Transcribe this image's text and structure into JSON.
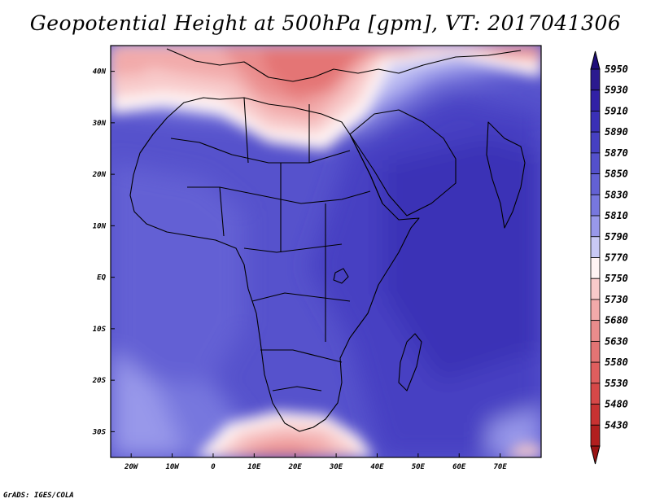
{
  "title": "Geopotential Height at 500hPa [gpm], VT: 2017041306",
  "footer": "GrADS: IGES/COLA",
  "map": {
    "lon_range": [
      -25,
      80
    ],
    "lat_range": [
      -35,
      45
    ],
    "lon_ticks": [
      {
        "value": -20,
        "label": "20W"
      },
      {
        "value": -10,
        "label": "10W"
      },
      {
        "value": 0,
        "label": "0"
      },
      {
        "value": 10,
        "label": "10E"
      },
      {
        "value": 20,
        "label": "20E"
      },
      {
        "value": 30,
        "label": "30E"
      },
      {
        "value": 40,
        "label": "40E"
      },
      {
        "value": 50,
        "label": "50E"
      },
      {
        "value": 60,
        "label": "60E"
      },
      {
        "value": 70,
        "label": "70E"
      }
    ],
    "lat_ticks": [
      {
        "value": 40,
        "label": "40N"
      },
      {
        "value": 30,
        "label": "30N"
      },
      {
        "value": 20,
        "label": "20N"
      },
      {
        "value": 10,
        "label": "10N"
      },
      {
        "value": 0,
        "label": "EQ"
      },
      {
        "value": -10,
        "label": "10S"
      },
      {
        "value": -20,
        "label": "20S"
      },
      {
        "value": -30,
        "label": "30S"
      }
    ]
  },
  "colorbar": {
    "levels": [
      {
        "value": "5950",
        "color": "#2b1a8f"
      },
      {
        "value": "5930",
        "color": "#3121a6"
      },
      {
        "value": "5910",
        "color": "#3a30b6"
      },
      {
        "value": "5890",
        "color": "#4640c2"
      },
      {
        "value": "5870",
        "color": "#5450cb"
      },
      {
        "value": "5850",
        "color": "#6361d4"
      },
      {
        "value": "5830",
        "color": "#7777de"
      },
      {
        "value": "5810",
        "color": "#9898ea"
      },
      {
        "value": "5790",
        "color": "#c9c9f5"
      },
      {
        "value": "5770",
        "color": "#fff4f4"
      },
      {
        "value": "5750",
        "color": "#f8caca"
      },
      {
        "value": "5730",
        "color": "#f2aaaa"
      },
      {
        "value": "5680",
        "color": "#ea8c8c"
      },
      {
        "value": "5630",
        "color": "#e47474"
      },
      {
        "value": "5580",
        "color": "#df5e5e"
      },
      {
        "value": "5530",
        "color": "#d64848"
      },
      {
        "value": "5480",
        "color": "#c83232"
      },
      {
        "value": "5430",
        "color": "#b11f1f"
      }
    ],
    "top_color": "#1f0e7a",
    "bottom_color": "#9a1414"
  }
}
